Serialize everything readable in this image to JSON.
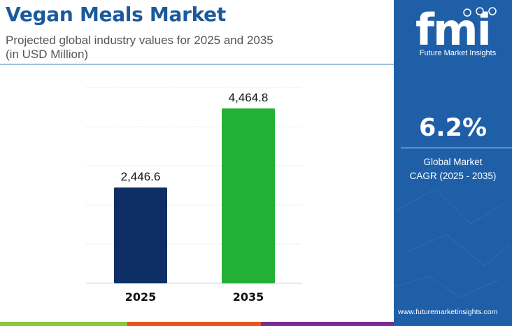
{
  "header": {
    "title": "Vegan Meals Market",
    "subtitle_line1": "Projected global industry values for 2025 and 2035",
    "subtitle_line2": "(in USD Million)"
  },
  "sidebar": {
    "logo_text": "fmi",
    "logo_caption": "Future Market Insights",
    "cagr_value": "6.2%",
    "cagr_label_line1": "Global Market",
    "cagr_label_line2": "CAGR (2025 - 2035)",
    "website": "www.futuremarketinsights.com"
  },
  "colors": {
    "title": "#1a5a9c",
    "sidebar": "#1f5fa8",
    "bar_2025": "#0d2f66",
    "bar_2035": "#22b136",
    "footer_segments": [
      "#8cc63f",
      "#e8541e",
      "#7b2c8f"
    ]
  },
  "chart_data": {
    "type": "bar",
    "categories": [
      "2025",
      "2035"
    ],
    "values": [
      2446.6,
      4464.8
    ],
    "value_labels": [
      "2,446.6",
      "4,464.8"
    ],
    "ylim": [
      0,
      5000
    ],
    "grid": true,
    "title": "",
    "xlabel": "",
    "ylabel": ""
  }
}
